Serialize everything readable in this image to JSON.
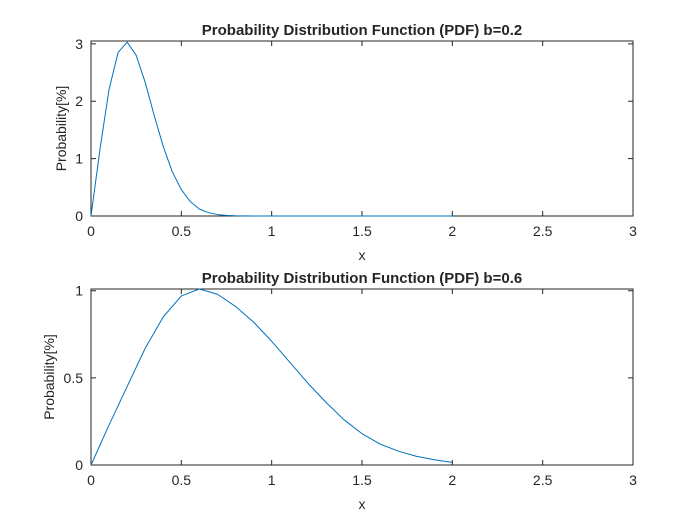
{
  "chart_data": [
    {
      "type": "line",
      "title": "Probability Distribution Function (PDF) b=0.2",
      "xlabel": "x",
      "ylabel": "Probability[%]",
      "xlim": [
        0,
        3
      ],
      "ylim": [
        0,
        3.05
      ],
      "xticks": [
        0,
        0.5,
        1,
        1.5,
        2,
        2.5,
        3
      ],
      "xtick_labels": [
        "0",
        "0.5",
        "1",
        "1.5",
        "2",
        "2.5",
        "3"
      ],
      "yticks": [
        0,
        1,
        2,
        3
      ],
      "ytick_labels": [
        "0",
        "1",
        "2",
        "3"
      ],
      "grid": false,
      "series": [
        {
          "color": "#0072bd",
          "x": [
            0,
            0.05,
            0.1,
            0.15,
            0.2,
            0.25,
            0.3,
            0.35,
            0.4,
            0.45,
            0.5,
            0.55,
            0.6,
            0.65,
            0.7,
            0.75,
            0.8,
            0.9,
            1.0,
            1.25,
            1.5,
            1.75,
            2.0
          ],
          "y": [
            0,
            1.17,
            2.21,
            2.85,
            3.03,
            2.8,
            2.33,
            1.75,
            1.21,
            0.77,
            0.46,
            0.25,
            0.12,
            0.06,
            0.025,
            0.01,
            0.004,
            0.0,
            0.0,
            0.0,
            0.0,
            0.0,
            0.0
          ]
        }
      ]
    },
    {
      "type": "line",
      "title": "Probability Distribution Function (PDF) b=0.6",
      "xlabel": "x",
      "ylabel": "Probability[%]",
      "xlim": [
        0,
        3
      ],
      "ylim": [
        0,
        1.01
      ],
      "xticks": [
        0,
        0.5,
        1,
        1.5,
        2,
        2.5,
        3
      ],
      "xtick_labels": [
        "0",
        "0.5",
        "1",
        "1.5",
        "2",
        "2.5",
        "3"
      ],
      "yticks": [
        0,
        0.5,
        1
      ],
      "ytick_labels": [
        "0",
        "0.5",
        "1"
      ],
      "grid": false,
      "series": [
        {
          "color": "#0072bd",
          "x": [
            0,
            0.1,
            0.2,
            0.3,
            0.4,
            0.5,
            0.6,
            0.7,
            0.8,
            0.9,
            1.0,
            1.1,
            1.2,
            1.3,
            1.4,
            1.5,
            1.6,
            1.7,
            1.8,
            1.9,
            2.0
          ],
          "y": [
            0,
            0.23,
            0.45,
            0.67,
            0.85,
            0.97,
            1.01,
            0.98,
            0.91,
            0.82,
            0.71,
            0.59,
            0.47,
            0.36,
            0.26,
            0.18,
            0.12,
            0.08,
            0.05,
            0.03,
            0.015
          ]
        }
      ]
    }
  ]
}
